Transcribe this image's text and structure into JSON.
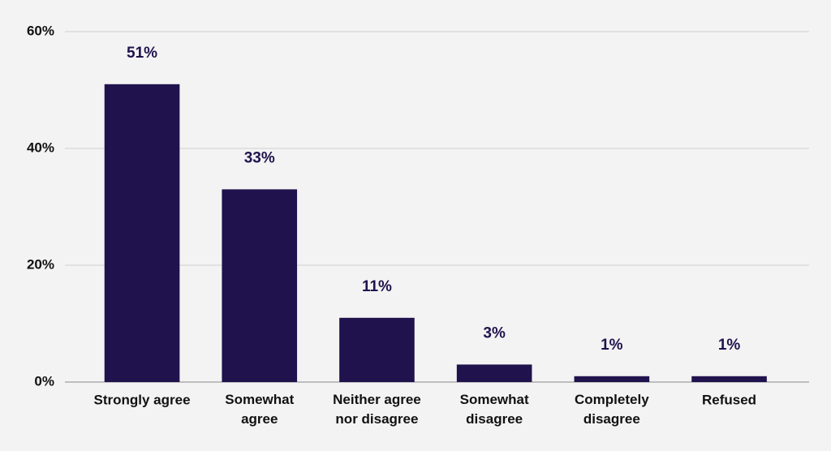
{
  "chart_data": {
    "type": "bar",
    "categories": [
      "Strongly agree",
      "Somewhat\nagree",
      "Neither agree\nnor disagree",
      "Somewhat\ndisagree",
      "Completely\ndisagree",
      "Refused"
    ],
    "values": [
      51,
      33,
      11,
      3,
      1,
      1
    ],
    "value_labels": [
      "51%",
      "33%",
      "11%",
      "3%",
      "1%",
      "1%"
    ],
    "color": "#20124d",
    "ylim": [
      0,
      60
    ],
    "yticks": [
      {
        "value": 0,
        "label": "0%"
      },
      {
        "value": 20,
        "label": "20%"
      },
      {
        "value": 40,
        "label": "40%"
      },
      {
        "value": 60,
        "label": "60%"
      }
    ],
    "grid": true
  }
}
